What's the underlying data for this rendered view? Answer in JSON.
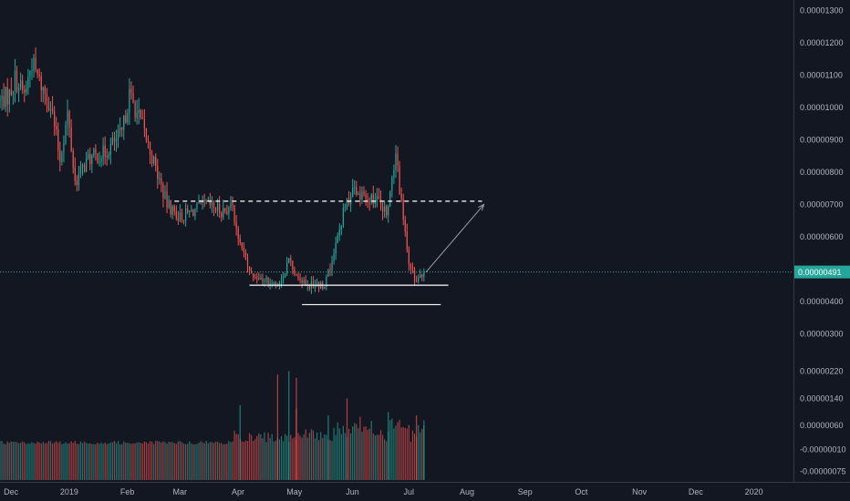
{
  "colors": {
    "background": "#131722",
    "grid": "#1f2433",
    "up": "#26a69a",
    "down": "#ef5350",
    "up_volume": "#26a69a",
    "down_volume": "#ef5350",
    "last_price": "#26a69a",
    "annotation": "#ffffff",
    "arrow": "#9aa0ad"
  },
  "chart_data": {
    "type": "candlestick",
    "price_axis_labels": [
      "0.00001300",
      "0.00001200",
      "0.00001100",
      "0.00001000",
      "0.00000900",
      "0.00000800",
      "0.00000700",
      "0.00000600",
      "0.00000500",
      "0.00000400",
      "0.00000300"
    ],
    "price_axis_values": [
      1.3e-05,
      1.2e-05,
      1.1e-05,
      1e-05,
      9e-06,
      8e-06,
      7e-06,
      6e-06,
      5e-06,
      4e-06,
      3e-06
    ],
    "volume_axis_labels": [
      "0.00000220",
      "0.00000140",
      "0.00000060",
      "-0.00000010",
      "-0.00000075"
    ],
    "volume_axis_values": [
      2.2e-06,
      1.4e-06,
      6e-07,
      -1e-07,
      -7.5e-07
    ],
    "time_axis_labels": [
      "Dec",
      "2019",
      "Feb",
      "Mar",
      "Apr",
      "May",
      "Jun",
      "Jul",
      "Aug",
      "Sep",
      "Oct",
      "Nov",
      "Dec",
      "2020"
    ],
    "time_axis_dates": [
      "2018-12-01",
      "2019-01-01",
      "2019-02-01",
      "2019-03-01",
      "2019-04-01",
      "2019-05-01",
      "2019-06-01",
      "2019-07-01",
      "2019-08-01",
      "2019-09-01",
      "2019-10-01",
      "2019-11-01",
      "2019-12-01",
      "2020-01-01"
    ],
    "last_price_label": "0.00000491",
    "last_price": 4.91e-06,
    "price_range": [
      2.7e-06,
      1.31e-05
    ],
    "date_range": [
      "2018-11-28",
      "2020-01-25"
    ],
    "grid": false,
    "price_path": [
      [
        "2018-11-28",
        1.02e-05
      ],
      [
        "2018-12-03",
        1.04e-05
      ],
      [
        "2018-12-06",
        1.09e-05
      ],
      [
        "2018-12-11",
        1.04e-05
      ],
      [
        "2018-12-15",
        1.14e-05
      ],
      [
        "2018-12-19",
        1.08e-05
      ],
      [
        "2018-12-25",
        1.01e-05
      ],
      [
        "2018-12-30",
        8.4e-06
      ],
      [
        "2019-01-03",
        9.8e-06
      ],
      [
        "2019-01-07",
        7.7e-06
      ],
      [
        "2019-01-14",
        8.4e-06
      ],
      [
        "2019-01-23",
        8.6e-06
      ],
      [
        "2019-02-01",
        9.2e-06
      ],
      [
        "2019-02-05",
        1.04e-05
      ],
      [
        "2019-02-12",
        9.4e-06
      ],
      [
        "2019-02-19",
        8.1e-06
      ],
      [
        "2019-02-25",
        7e-06
      ],
      [
        "2019-03-04",
        6.6e-06
      ],
      [
        "2019-03-11",
        6.8e-06
      ],
      [
        "2019-03-18",
        7e-06
      ],
      [
        "2019-03-26",
        6.8e-06
      ],
      [
        "2019-04-01",
        6.9e-06
      ],
      [
        "2019-04-06",
        5.5e-06
      ],
      [
        "2019-04-12",
        4.8e-06
      ],
      [
        "2019-04-20",
        4.6e-06
      ],
      [
        "2019-04-27",
        4.6e-06
      ],
      [
        "2019-05-01",
        5.3e-06
      ],
      [
        "2019-05-06",
        4.7e-06
      ],
      [
        "2019-05-13",
        4.5e-06
      ],
      [
        "2019-05-20",
        4.5e-06
      ],
      [
        "2019-05-26",
        5.7e-06
      ],
      [
        "2019-05-31",
        7e-06
      ],
      [
        "2019-06-05",
        7.5e-06
      ],
      [
        "2019-06-10",
        7.2e-06
      ],
      [
        "2019-06-16",
        7.2e-06
      ],
      [
        "2019-06-22",
        6.8e-06
      ],
      [
        "2019-06-27",
        8.5e-06
      ],
      [
        "2019-07-01",
        6.5e-06
      ],
      [
        "2019-07-04",
        5.3e-06
      ],
      [
        "2019-07-08",
        4.5e-06
      ],
      [
        "2019-07-12",
        4.9e-06
      ]
    ],
    "volume_bars": [
      [
        "2019-04-05",
        1.2e-06
      ],
      [
        "2019-05-05",
        1.1e-06
      ],
      [
        "2019-05-22",
        9e-07
      ],
      [
        "2019-06-01",
        1.4e-06
      ],
      [
        "2019-06-23",
        1e-06
      ],
      [
        "2019-07-08",
        9e-07
      ],
      [
        "2019-07-12",
        6e-07
      ],
      [
        "2019-04-25",
        2.1e-06
      ],
      [
        "2019-05-01",
        2.2e-06
      ],
      [
        "2019-05-05",
        2e-06
      ]
    ],
    "annotations": {
      "resistance": {
        "price": 7.1e-06,
        "from": "2019-03-01",
        "to": "2019-08-12",
        "style": "dashed"
      },
      "support_upper": {
        "price": 4.5e-06,
        "from": "2019-04-10",
        "to": "2019-07-25",
        "style": "solid"
      },
      "support_lower": {
        "price": 3.9e-06,
        "from": "2019-05-08",
        "to": "2019-07-21",
        "style": "solid"
      },
      "projection_arrow": {
        "from": [
          "2019-07-13",
          4.9e-06
        ],
        "to": [
          "2019-08-13",
          7e-06
        ]
      }
    }
  }
}
